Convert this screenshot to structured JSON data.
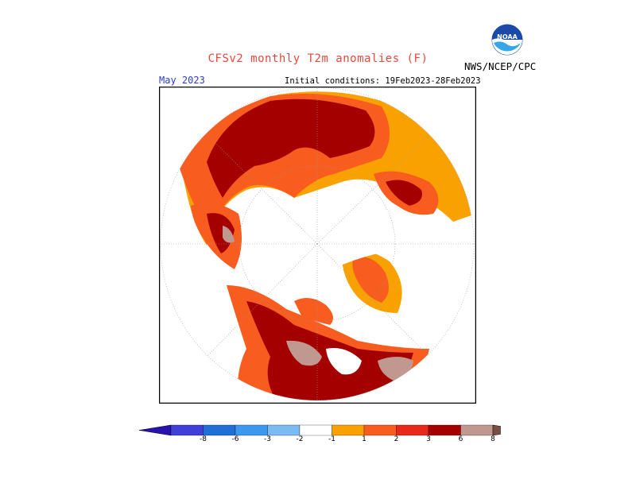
{
  "header": {
    "title": "CFSv2 monthly T2m anomalies (F)",
    "month": "May 2023",
    "initial_conditions": "Initial conditions: 19Feb2023-28Feb2023",
    "agency": "NWS/NCEP/CPC",
    "logo_text": "NOAA"
  },
  "colors": {
    "title": "#e8483c",
    "month": "#2c3ec8",
    "anomaly_1_2": "#f9a100",
    "anomaly_2_3": "#f85c1e",
    "anomaly_3_6": "#a50000",
    "anomaly_6_8": "#c09890",
    "land_outline": "#000000",
    "ocean": "#ffffff"
  },
  "colorbar": {
    "ticks": [
      "-8",
      "-6",
      "-3",
      "-2",
      "-1",
      "1",
      "2",
      "3",
      "6",
      "8"
    ],
    "colors": [
      "#2a12b0",
      "#4040d8",
      "#1e6fd6",
      "#3c98ee",
      "#7cbaf4",
      "#ffffff",
      "#f9a100",
      "#f85c1e",
      "#e82818",
      "#a50000",
      "#c09890",
      "#7a4f44"
    ]
  }
}
